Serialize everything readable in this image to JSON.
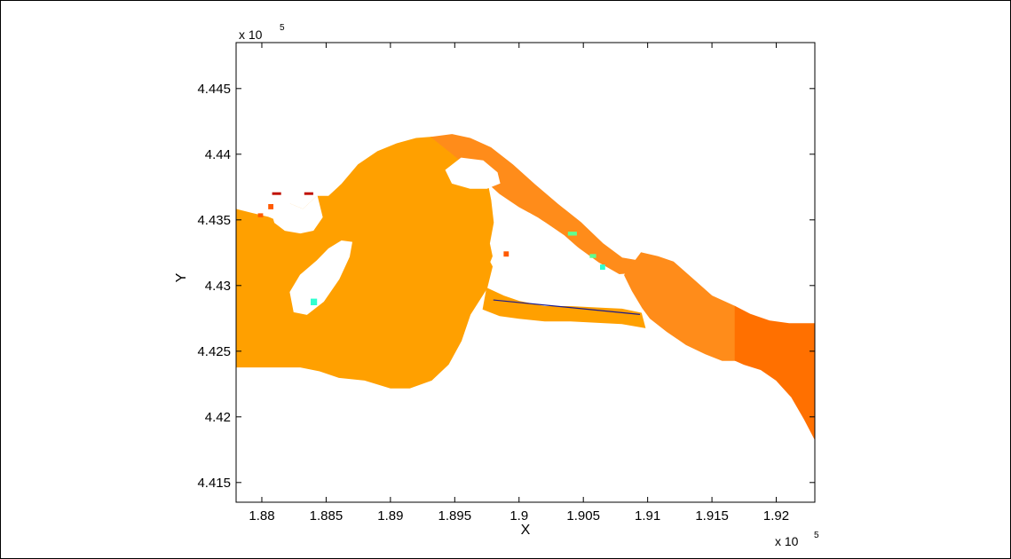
{
  "chart_data": {
    "type": "heatmap",
    "title": "",
    "xlabel": "X",
    "ylabel": "Y",
    "x_multiplier": "x 10",
    "x_multiplier_exp": "5",
    "y_multiplier": "x 10",
    "y_multiplier_exp": "5",
    "xlim": [
      1.878,
      1.923
    ],
    "ylim": [
      4.4135,
      4.4485
    ],
    "xticks": [
      1.88,
      1.885,
      1.89,
      1.895,
      1.9,
      1.905,
      1.91,
      1.915,
      1.92
    ],
    "xtick_labels": [
      "1.88",
      "1.885",
      "1.89",
      "1.895",
      "1.9",
      "1.905",
      "1.91",
      "1.915",
      "1.92"
    ],
    "yticks": [
      4.415,
      4.42,
      4.425,
      4.43,
      4.435,
      4.44,
      4.445
    ],
    "ytick_labels": [
      "4.415",
      "4.42",
      "4.425",
      "4.43",
      "4.435",
      "4.44",
      "4.445"
    ],
    "grid": false,
    "colors": {
      "main_body": "#ffa000",
      "channel": "#ff8c1a",
      "outlet": "#ff7000",
      "highlight": "#ff5a00",
      "dark_red": "#c01000",
      "cyan": "#30ffd0",
      "green": "#60ff90",
      "transect_line": "#1a1a8c"
    },
    "regions": [
      {
        "name": "main-body",
        "color": "#ffa000",
        "points": [
          [
            1.878,
            4.4358
          ],
          [
            1.8792,
            4.4355
          ],
          [
            1.8805,
            4.4352
          ],
          [
            1.8815,
            4.4348
          ],
          [
            1.8822,
            4.4362
          ],
          [
            1.8832,
            4.4358
          ],
          [
            1.8843,
            4.4368
          ],
          [
            1.8852,
            4.4368
          ],
          [
            1.8862,
            4.4377
          ],
          [
            1.8875,
            4.4392
          ],
          [
            1.889,
            4.4402
          ],
          [
            1.8905,
            4.4408
          ],
          [
            1.892,
            4.4412
          ],
          [
            1.8932,
            4.4413
          ],
          [
            1.8945,
            4.4411
          ],
          [
            1.8958,
            4.4402
          ],
          [
            1.8966,
            4.4395
          ],
          [
            1.897,
            4.4388
          ],
          [
            1.8975,
            4.438
          ],
          [
            1.8978,
            4.4365
          ],
          [
            1.898,
            4.4348
          ],
          [
            1.8977,
            4.4332
          ],
          [
            1.898,
            4.4318
          ],
          [
            1.8975,
            4.4298
          ],
          [
            1.8962,
            4.4278
          ],
          [
            1.8955,
            4.4258
          ],
          [
            1.8945,
            4.424
          ],
          [
            1.8932,
            4.4228
          ],
          [
            1.8915,
            4.4222
          ],
          [
            1.89,
            4.4222
          ],
          [
            1.888,
            4.4228
          ],
          [
            1.886,
            4.423
          ],
          [
            1.8845,
            4.4235
          ],
          [
            1.883,
            4.4238
          ],
          [
            1.881,
            4.4238
          ],
          [
            1.879,
            4.4238
          ],
          [
            1.878,
            4.4238
          ]
        ]
      },
      {
        "name": "middle-channel",
        "color": "#ffa000",
        "points": [
          [
            1.8975,
            4.4298
          ],
          [
            1.8988,
            4.4292
          ],
          [
            1.9,
            4.4288
          ],
          [
            1.902,
            4.4284
          ],
          [
            1.904,
            4.4284
          ],
          [
            1.906,
            4.4283
          ],
          [
            1.908,
            4.4282
          ],
          [
            1.9095,
            4.4279
          ],
          [
            1.9098,
            4.4268
          ],
          [
            1.908,
            4.4271
          ],
          [
            1.906,
            4.4272
          ],
          [
            1.904,
            4.4273
          ],
          [
            1.902,
            4.4273
          ],
          [
            1.9,
            4.4275
          ],
          [
            1.8985,
            4.4277
          ],
          [
            1.8972,
            4.4282
          ]
        ]
      },
      {
        "name": "north-channel",
        "color": "#ff8c1a",
        "points": [
          [
            1.8932,
            4.4413
          ],
          [
            1.8948,
            4.4415
          ],
          [
            1.8962,
            4.4412
          ],
          [
            1.8978,
            4.4405
          ],
          [
            1.8995,
            4.4392
          ],
          [
            1.9012,
            4.4377
          ],
          [
            1.903,
            4.4362
          ],
          [
            1.9048,
            4.4348
          ],
          [
            1.9065,
            4.4332
          ],
          [
            1.908,
            4.4321
          ],
          [
            1.9092,
            4.4319
          ],
          [
            1.9102,
            4.4322
          ],
          [
            1.9092,
            4.431
          ],
          [
            1.9078,
            4.4309
          ],
          [
            1.9062,
            4.4318
          ],
          [
            1.9045,
            4.433
          ],
          [
            1.903,
            4.4342
          ],
          [
            1.9015,
            4.4352
          ],
          [
            1.9,
            4.436
          ],
          [
            1.8985,
            4.437
          ],
          [
            1.8968,
            4.4385
          ],
          [
            1.8955,
            4.4395
          ]
        ]
      },
      {
        "name": "lower-channel",
        "color": "#ff8c1a",
        "points": [
          [
            1.9095,
            4.4325
          ],
          [
            1.9108,
            4.4322
          ],
          [
            1.912,
            4.4318
          ],
          [
            1.9135,
            4.4305
          ],
          [
            1.915,
            4.4292
          ],
          [
            1.9168,
            4.4284
          ],
          [
            1.9168,
            4.4243
          ],
          [
            1.9158,
            4.4243
          ],
          [
            1.9145,
            4.4248
          ],
          [
            1.913,
            4.4255
          ],
          [
            1.9115,
            4.4265
          ],
          [
            1.9102,
            4.4275
          ],
          [
            1.9096,
            4.4283
          ],
          [
            1.9088,
            4.4296
          ],
          [
            1.9082,
            4.4308
          ]
        ]
      },
      {
        "name": "outlet",
        "color": "#ff7000",
        "points": [
          [
            1.9168,
            4.4284
          ],
          [
            1.918,
            4.4278
          ],
          [
            1.9195,
            4.4273
          ],
          [
            1.921,
            4.4271
          ],
          [
            1.923,
            4.4271
          ],
          [
            1.923,
            4.4183
          ],
          [
            1.9222,
            4.4198
          ],
          [
            1.9212,
            4.4215
          ],
          [
            1.92,
            4.4228
          ],
          [
            1.9188,
            4.4236
          ],
          [
            1.9175,
            4.424
          ],
          [
            1.9168,
            4.4243
          ]
        ]
      }
    ],
    "holes": [
      {
        "name": "island-left",
        "points": [
          [
            1.8843,
            4.4319
          ],
          [
            1.8852,
            4.4328
          ],
          [
            1.8862,
            4.4334
          ],
          [
            1.887,
            4.4333
          ],
          [
            1.8868,
            4.4322
          ],
          [
            1.886,
            4.4305
          ],
          [
            1.8848,
            4.4288
          ],
          [
            1.8835,
            4.4278
          ],
          [
            1.8825,
            4.428
          ],
          [
            1.8822,
            4.4295
          ],
          [
            1.883,
            4.4308
          ]
        ]
      },
      {
        "name": "island-top",
        "points": [
          [
            1.8943,
            4.4388
          ],
          [
            1.8955,
            4.4397
          ],
          [
            1.8972,
            4.4395
          ],
          [
            1.8983,
            4.4386
          ],
          [
            1.8985,
            4.4378
          ],
          [
            1.8975,
            4.4374
          ],
          [
            1.8962,
            4.4374
          ],
          [
            1.8948,
            4.4378
          ]
        ]
      },
      {
        "name": "island-middle",
        "points": [
          [
            1.8995,
            4.4345
          ],
          [
            1.9008,
            4.4355
          ],
          [
            1.902,
            4.4348
          ],
          [
            1.9035,
            4.4338
          ],
          [
            1.905,
            4.4325
          ],
          [
            1.9062,
            4.4313
          ],
          [
            1.907,
            4.4305
          ],
          [
            1.908,
            4.4298
          ],
          [
            1.9065,
            4.4297
          ],
          [
            1.9045,
            4.4296
          ],
          [
            1.9025,
            4.4294
          ],
          [
            1.9005,
            4.4298
          ],
          [
            1.8985,
            4.4305
          ],
          [
            1.8978,
            4.4318
          ],
          [
            1.8985,
            4.4335
          ]
        ]
      },
      {
        "name": "notch-top-left",
        "points": [
          [
            1.8805,
            4.4365
          ],
          [
            1.8812,
            4.4363
          ],
          [
            1.8822,
            4.4362
          ],
          [
            1.8832,
            4.4358
          ],
          [
            1.8843,
            4.4368
          ],
          [
            1.8847,
            4.4352
          ],
          [
            1.884,
            4.4342
          ],
          [
            1.883,
            4.434
          ],
          [
            1.8818,
            4.4342
          ],
          [
            1.881,
            4.4348
          ]
        ]
      }
    ],
    "highlights": [
      {
        "name": "red-cell-1",
        "color": "#c01000",
        "x": 1.8808,
        "y": 4.4369,
        "w": 0.0007,
        "h": 0.0002
      },
      {
        "name": "red-cell-2",
        "color": "#c01000",
        "x": 1.8833,
        "y": 4.4369,
        "w": 0.0007,
        "h": 0.0002
      },
      {
        "name": "orange-cell-1",
        "color": "#ff5a00",
        "x": 1.8805,
        "y": 4.4358,
        "w": 0.0004,
        "h": 0.0004
      },
      {
        "name": "orange-cell-2",
        "color": "#ff5a00",
        "x": 1.8797,
        "y": 4.4352,
        "w": 0.0004,
        "h": 0.0003
      },
      {
        "name": "orange-cell-3",
        "color": "#ff5a00",
        "x": 1.8988,
        "y": 4.4322,
        "w": 0.0004,
        "h": 0.0004
      },
      {
        "name": "cyan-cell-1",
        "color": "#30ffd0",
        "x": 1.8838,
        "y": 4.4285,
        "w": 0.0005,
        "h": 0.0005
      },
      {
        "name": "green-cell-1",
        "color": "#60ff90",
        "x": 1.9038,
        "y": 4.4338,
        "w": 0.0007,
        "h": 0.0003
      },
      {
        "name": "cyan-cell-2",
        "color": "#30ffd0",
        "x": 1.9063,
        "y": 4.4312,
        "w": 0.0004,
        "h": 0.0004
      },
      {
        "name": "green-cell-2",
        "color": "#60ff90",
        "x": 1.9055,
        "y": 4.4321,
        "w": 0.0005,
        "h": 0.0003
      }
    ],
    "transect": {
      "x": [
        1.898,
        1.9094
      ],
      "y": [
        4.4289,
        4.4278
      ],
      "color": "#1a1a8c"
    }
  }
}
